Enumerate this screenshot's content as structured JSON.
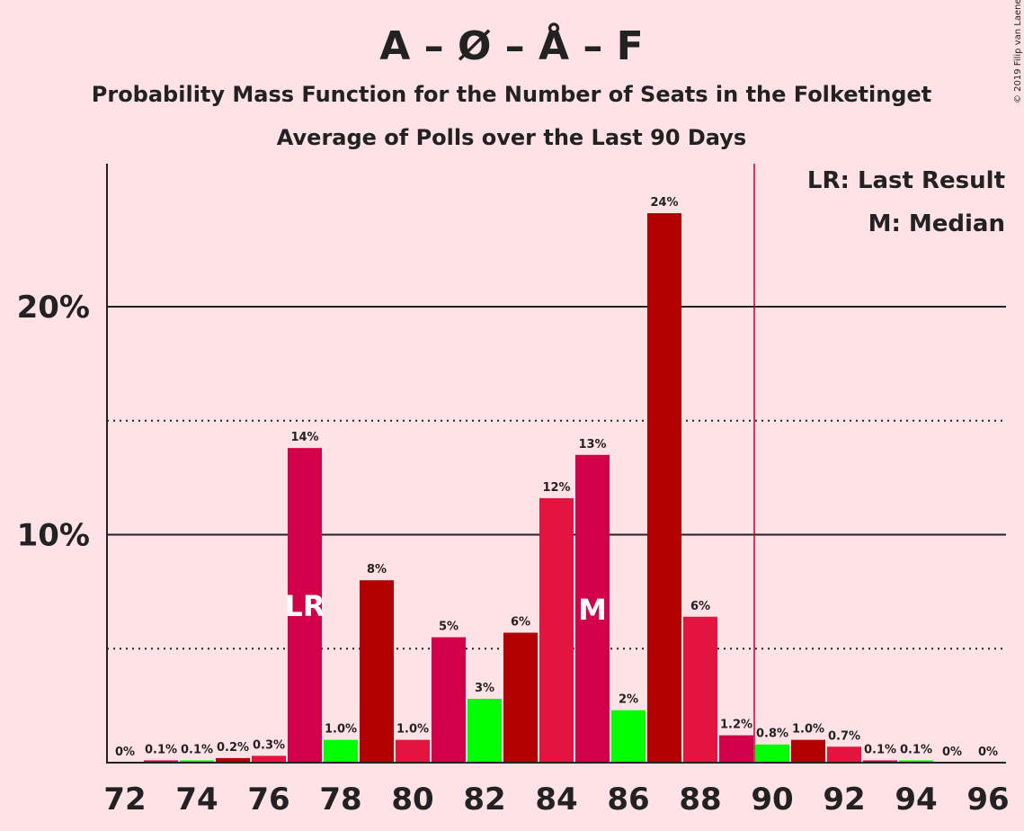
{
  "chart_data": {
    "type": "bar",
    "title": "A – Ø – Å – F",
    "subtitle": "Probability Mass Function for the Number of Seats in the Folketinget",
    "subtitle2": "Average of Polls over the Last 90 Days",
    "credit": "© 2019 Filip van Laenen",
    "legend": [
      "LR: Last Result",
      "M: Median"
    ],
    "legend_placement": "top-right",
    "x": [
      72,
      73,
      74,
      75,
      76,
      77,
      78,
      79,
      80,
      81,
      82,
      83,
      84,
      85,
      86,
      87,
      88,
      89,
      90,
      91,
      92,
      93,
      94,
      95,
      96
    ],
    "values": [
      0,
      0.1,
      0.1,
      0.2,
      0.3,
      13.8,
      1.0,
      8.0,
      1.0,
      5.5,
      2.8,
      5.7,
      11.6,
      13.5,
      2.3,
      24.1,
      6.4,
      1.2,
      0.8,
      1.0,
      0.7,
      0.1,
      0.1,
      0,
      0
    ],
    "labels": [
      "0%",
      "0.1%",
      "0.1%",
      "0.2%",
      "0.3%",
      "14%",
      "1.0%",
      "8%",
      "1.0%",
      "5%",
      "3%",
      "6%",
      "12%",
      "13%",
      "2%",
      "24%",
      "6%",
      "1.2%",
      "0.8%",
      "1.0%",
      "0.7%",
      "0.1%",
      "0.1%",
      "0%",
      "0%"
    ],
    "colors": [
      "#d10049",
      "#d10049",
      "#00ff00",
      "#b30000",
      "#e3143d",
      "#d10049",
      "#00ff00",
      "#b30000",
      "#e3143d",
      "#d10049",
      "#00ff00",
      "#b30000",
      "#e3143d",
      "#d10049",
      "#00ff00",
      "#b30000",
      "#e3143d",
      "#d10049",
      "#00ff00",
      "#b30000",
      "#e3143d",
      "#d10049",
      "#00ff00",
      "#b30000",
      "#e3143d"
    ],
    "xticks": [
      "72",
      "74",
      "76",
      "78",
      "80",
      "82",
      "84",
      "86",
      "88",
      "90",
      "92",
      "94",
      "96"
    ],
    "yticks": [
      {
        "value": 10,
        "label": "10%"
      },
      {
        "value": 20,
        "label": "20%"
      }
    ],
    "dotted_gridlines": [
      5,
      15
    ],
    "ylim": [
      0,
      26
    ],
    "majority_line_x": 89.5,
    "majority_color": "#cc0033",
    "last_result": {
      "x": 77,
      "label": "LR"
    },
    "median": {
      "x": 85,
      "label": "M"
    }
  }
}
